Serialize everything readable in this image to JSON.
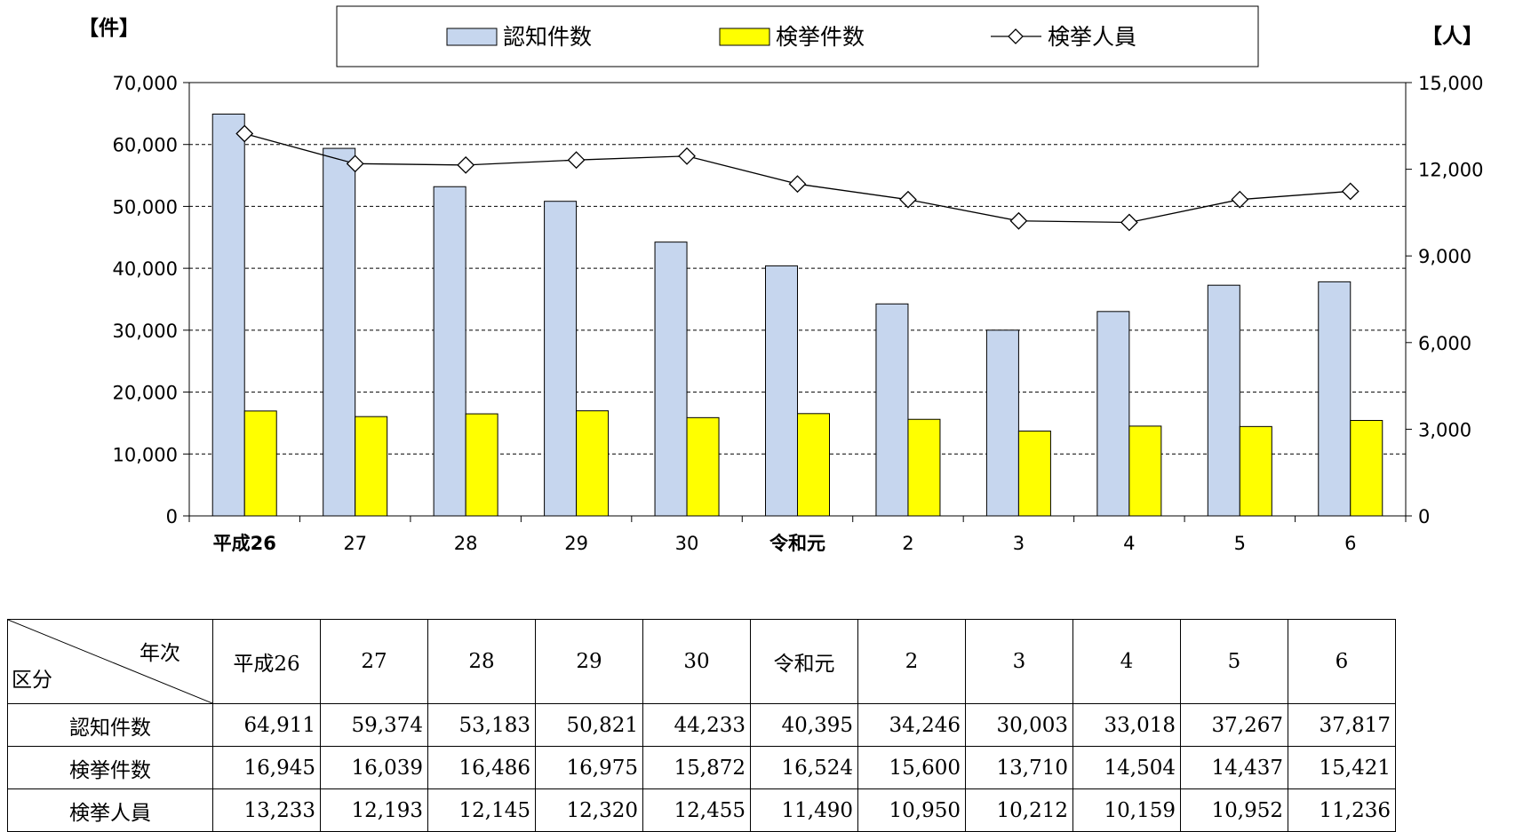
{
  "chart_data": {
    "type": "bar",
    "categories": [
      "平成26",
      "27",
      "28",
      "29",
      "30",
      "令和元",
      "2",
      "3",
      "4",
      "5",
      "6"
    ],
    "series": [
      {
        "name": "認知件数",
        "kind": "bar",
        "axis": "left",
        "color": "#C6D6EE",
        "values": [
          64911,
          59374,
          53183,
          50821,
          44233,
          40395,
          34246,
          30003,
          33018,
          37267,
          37817
        ]
      },
      {
        "name": "検挙件数",
        "kind": "bar",
        "axis": "left",
        "color": "#FFFF00",
        "values": [
          16945,
          16039,
          16486,
          16975,
          15872,
          16524,
          15600,
          13710,
          14504,
          14437,
          15421
        ]
      },
      {
        "name": "検挙人員",
        "kind": "line",
        "axis": "right",
        "color": "#000000",
        "values": [
          13233,
          12193,
          12145,
          12320,
          12455,
          11490,
          10950,
          10212,
          10159,
          10952,
          11236
        ]
      }
    ],
    "yleft_label": "【件】",
    "yright_label": "【人】",
    "yleft_lim": [
      0,
      70000
    ],
    "yright_lim": [
      0,
      15000
    ],
    "yleft_ticks": [
      "0",
      "10,000",
      "20,000",
      "30,000",
      "40,000",
      "50,000",
      "60,000",
      "70,000"
    ],
    "yright_ticks": [
      "0",
      "3,000",
      "6,000",
      "9,000",
      "12,000",
      "15,000"
    ],
    "grid": true,
    "legend_position": "top-center"
  },
  "table": {
    "corner_top": "年次",
    "corner_bottom": "区分",
    "columns": [
      "平成26",
      "27",
      "28",
      "29",
      "30",
      "令和元",
      "2",
      "3",
      "4",
      "5",
      "6"
    ],
    "rows": [
      {
        "label": "認知件数",
        "values": [
          "64,911",
          "59,374",
          "53,183",
          "50,821",
          "44,233",
          "40,395",
          "34,246",
          "30,003",
          "33,018",
          "37,267",
          "37,817"
        ]
      },
      {
        "label": "検挙件数",
        "values": [
          "16,945",
          "16,039",
          "16,486",
          "16,975",
          "15,872",
          "16,524",
          "15,600",
          "13,710",
          "14,504",
          "14,437",
          "15,421"
        ]
      },
      {
        "label": "検挙人員",
        "values": [
          "13,233",
          "12,193",
          "12,145",
          "12,320",
          "12,455",
          "11,490",
          "10,950",
          "10,212",
          "10,159",
          "10,952",
          "11,236"
        ]
      }
    ]
  }
}
